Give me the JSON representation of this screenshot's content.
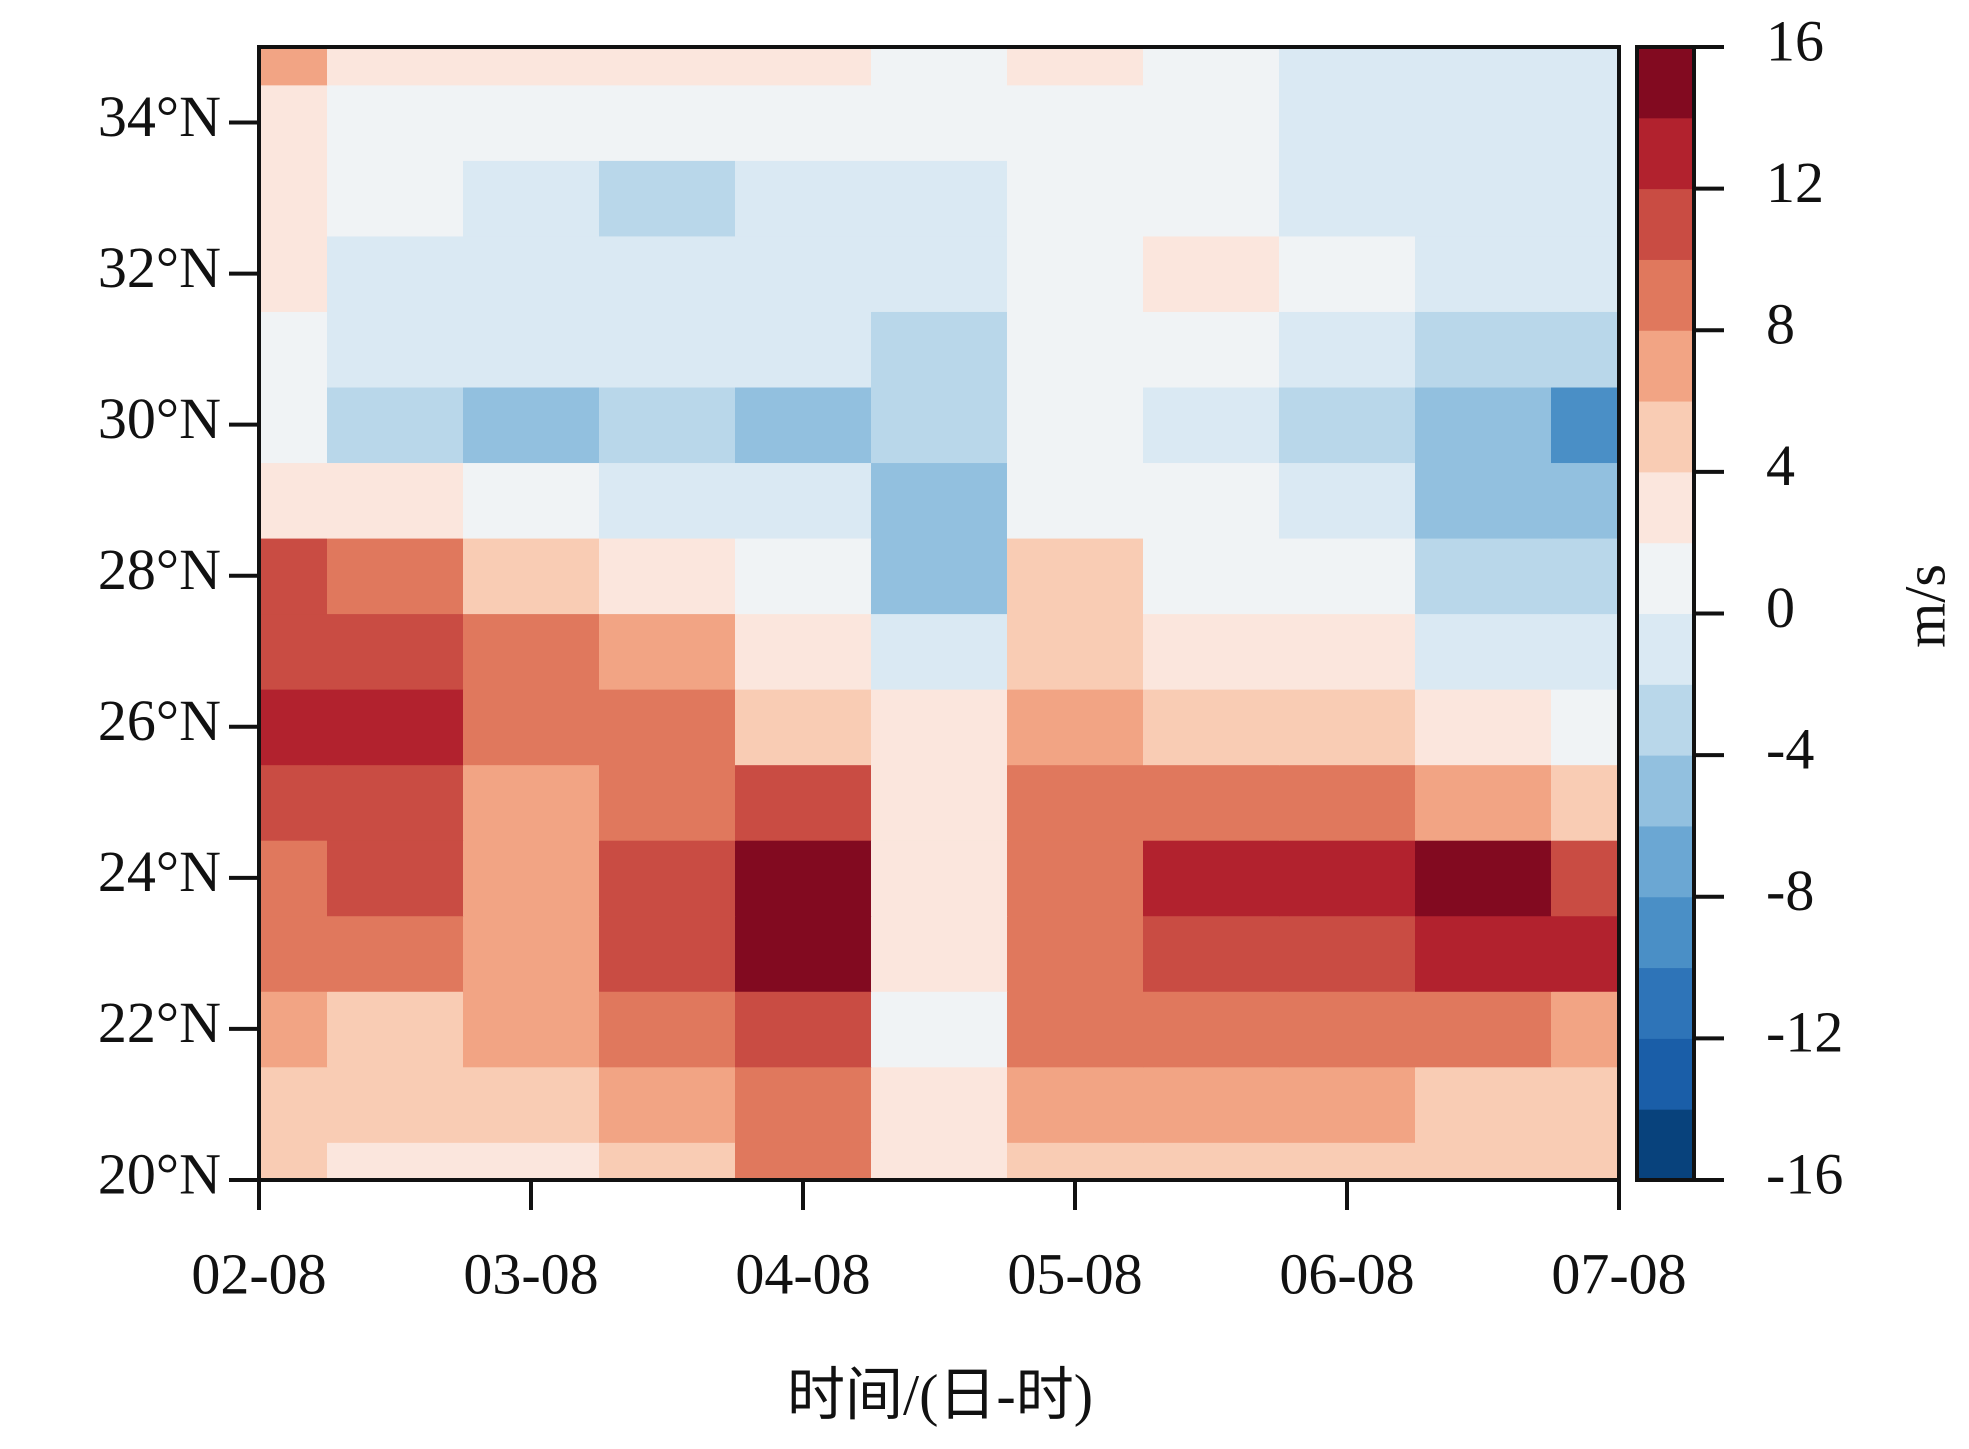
{
  "chart_data": {
    "type": "contour",
    "x_label": "时间/(日-时)",
    "x": [
      "02-08",
      "02-20",
      "03-08",
      "03-20",
      "04-08",
      "04-20",
      "05-08",
      "05-20",
      "06-08",
      "06-20",
      "07-08"
    ],
    "xticks": [
      "02-08",
      "03-08",
      "04-08",
      "05-08",
      "06-08",
      "07-08"
    ],
    "y": [
      20,
      21,
      22,
      23,
      24,
      25,
      26,
      27,
      28,
      29,
      30,
      31,
      32,
      33,
      34,
      35
    ],
    "ylim": [
      20,
      35
    ],
    "yticks": [
      {
        "value": 20,
        "label": "20°N"
      },
      {
        "value": 22,
        "label": "22°N"
      },
      {
        "value": 24,
        "label": "24°N"
      },
      {
        "value": 26,
        "label": "26°N"
      },
      {
        "value": 28,
        "label": "28°N"
      },
      {
        "value": 30,
        "label": "30°N"
      },
      {
        "value": 32,
        "label": "32°N"
      },
      {
        "value": 34,
        "label": "34°N"
      }
    ],
    "z": [
      [
        4,
        3,
        3,
        5,
        8,
        2,
        5,
        4,
        5,
        4,
        4
      ],
      [
        4,
        5,
        4,
        6,
        9,
        2,
        7,
        6,
        6,
        5,
        5
      ],
      [
        6,
        5,
        6,
        8,
        11,
        1,
        8,
        8,
        8,
        8,
        7
      ],
      [
        8,
        8,
        6,
        10,
        14,
        2,
        8,
        11,
        10,
        12,
        13
      ],
      [
        9,
        11,
        6,
        11,
        15,
        3,
        9,
        13,
        12,
        14,
        11
      ],
      [
        11,
        11,
        7,
        9,
        11,
        3,
        8,
        8,
        8,
        7,
        4
      ],
      [
        12,
        12,
        9,
        9,
        4,
        2,
        7,
        5,
        4,
        3,
        0
      ],
      [
        11,
        10,
        8,
        7,
        3,
        -1,
        5,
        3,
        2,
        -2,
        -2
      ],
      [
        10,
        8,
        5,
        3,
        1,
        -5,
        5,
        1,
        0,
        -3,
        -3
      ],
      [
        3,
        2,
        0,
        -1,
        -2,
        -5,
        0,
        0,
        -2,
        -5,
        -6
      ],
      [
        0,
        -3,
        -5,
        -4,
        -5,
        -3,
        0,
        -2,
        -3,
        -6,
        -9
      ],
      [
        1,
        -1,
        -2,
        -2,
        -1,
        -3,
        1,
        1,
        -1,
        -4,
        -3
      ],
      [
        3,
        -1,
        -2,
        -2,
        -1,
        -2,
        1,
        3,
        0,
        -1,
        -1
      ],
      [
        2,
        0,
        -2,
        -3,
        -1,
        -2,
        1,
        0,
        -1,
        -2,
        -1
      ],
      [
        2,
        1,
        0,
        1,
        1,
        0,
        1,
        0,
        -2,
        -1,
        -1
      ],
      [
        6,
        3,
        2,
        3,
        3,
        1,
        2,
        1,
        -2,
        -1,
        -1
      ]
    ],
    "colorbar": {
      "label": "m/s",
      "levels": [
        -16,
        -14,
        -12,
        -10,
        -8,
        -6,
        -4,
        -2,
        0,
        2,
        4,
        6,
        8,
        10,
        12,
        14,
        16
      ],
      "colors": [
        "#08427c",
        "#1a5ea8",
        "#2e74b8",
        "#4a8fc6",
        "#6ba7d3",
        "#92c0df",
        "#b9d7ea",
        "#dae9f3",
        "#f0f3f5",
        "#fbe6dd",
        "#f9ccb4",
        "#f2a484",
        "#e0785d",
        "#c94c43",
        "#b2222e",
        "#820a20"
      ],
      "ticks": [
        16,
        12,
        8,
        4,
        0,
        -4,
        -8,
        -12,
        -16
      ]
    }
  }
}
